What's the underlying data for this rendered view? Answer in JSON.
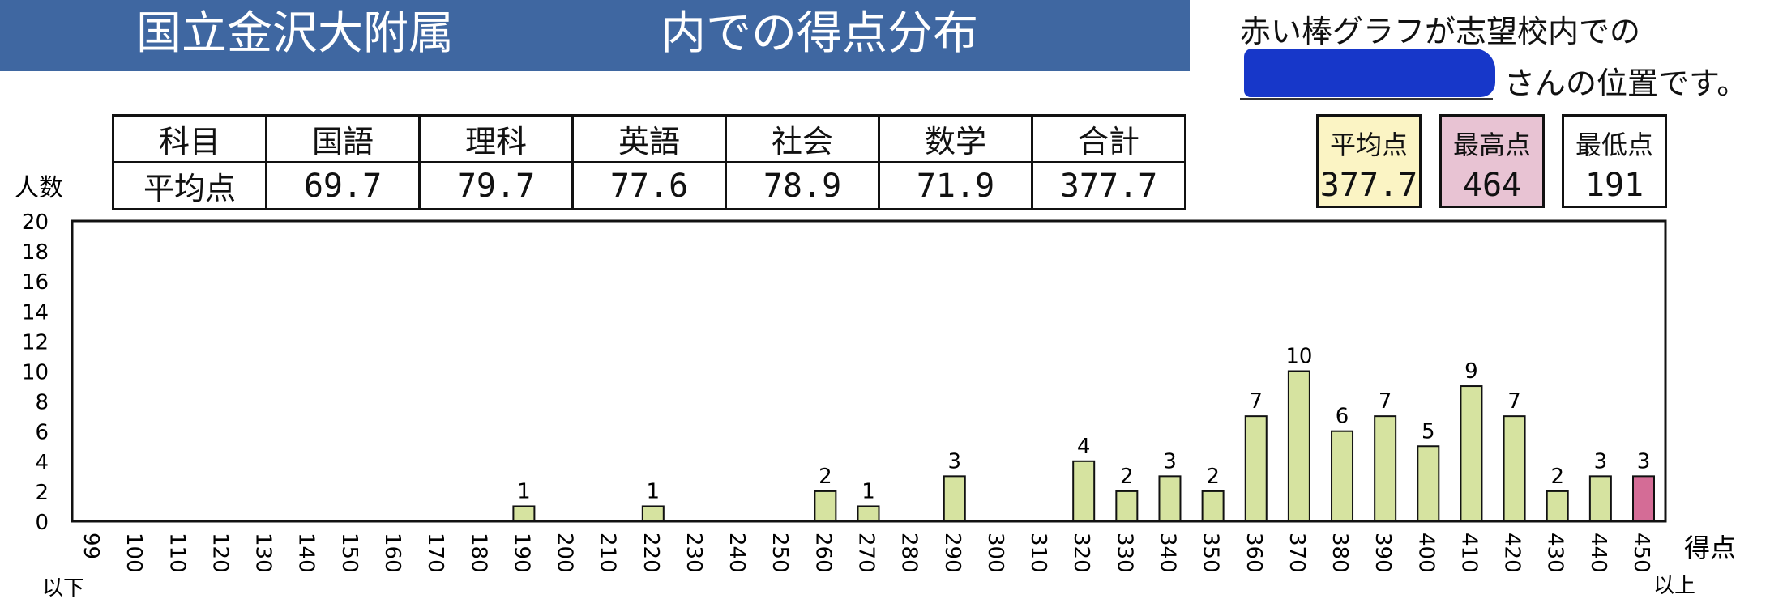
{
  "header": {
    "title_school": "国立金沢大附属",
    "title_suffix": "内での得点分布",
    "note_line1": "赤い棒グラフが志望校内での",
    "note_line2": "さんの位置です。"
  },
  "averages_table": {
    "row_header_label": "科目",
    "row_value_label": "平均点",
    "subjects": [
      "国語",
      "理科",
      "英語",
      "社会",
      "数学",
      "合計"
    ],
    "values": [
      "69.7",
      "79.7",
      "77.6",
      "78.9",
      "71.9",
      "377.7"
    ]
  },
  "summary": {
    "average_label": "平均点",
    "average_value": "377.7",
    "max_label": "最高点",
    "max_value": "464",
    "min_label": "最低点",
    "min_value": "191"
  },
  "colors": {
    "banner": "#3f67a1",
    "bar": "#d6e3a0",
    "bar_highlight": "#d46c96",
    "average_box": "#fbf4c4",
    "max_box": "#e8c3d3"
  },
  "chart_data": {
    "type": "bar",
    "ylabel": "人数",
    "xlabel": "得点",
    "x_first_suffix": "以下",
    "x_last_suffix": "以上",
    "ylim": [
      0,
      20
    ],
    "yticks": [
      "0",
      "2",
      "4",
      "6",
      "8",
      "10",
      "12",
      "14",
      "16",
      "18",
      "20"
    ],
    "grid": false,
    "categories": [
      "99",
      "100",
      "110",
      "120",
      "130",
      "140",
      "150",
      "160",
      "170",
      "180",
      "190",
      "200",
      "210",
      "220",
      "230",
      "240",
      "250",
      "260",
      "270",
      "280",
      "290",
      "300",
      "310",
      "320",
      "330",
      "340",
      "350",
      "360",
      "370",
      "380",
      "390",
      "400",
      "410",
      "420",
      "430",
      "440",
      "450"
    ],
    "values": [
      0,
      0,
      0,
      0,
      0,
      0,
      0,
      0,
      0,
      0,
      1,
      0,
      0,
      1,
      0,
      0,
      0,
      2,
      1,
      0,
      3,
      0,
      0,
      4,
      2,
      3,
      2,
      7,
      10,
      6,
      7,
      5,
      9,
      7,
      2,
      3,
      3
    ],
    "highlight_category": "450"
  }
}
